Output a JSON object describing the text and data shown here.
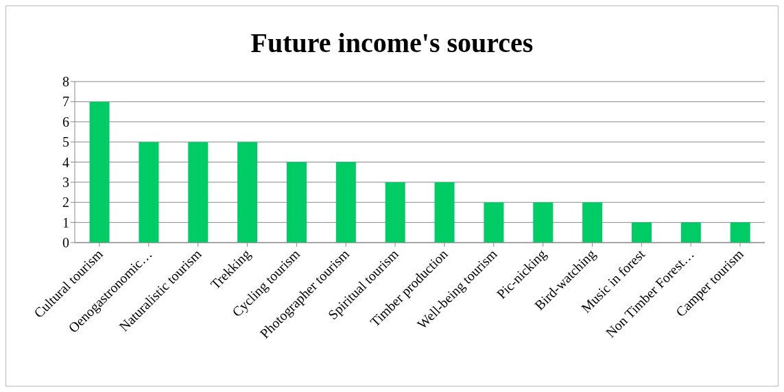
{
  "chart_data": {
    "type": "bar",
    "title": "Future income's sources",
    "categories": [
      "Cultural tourism",
      "Oenogastronomic…",
      "Naturalistic tourism",
      "Trekking",
      "Cycling tourism",
      "Photographer tourism",
      "Spiritual tourism",
      "Timber production",
      "Well-being tourism",
      "Pic-nicking",
      "Bird-watching",
      "Music in forest",
      "Non Timber Forest…",
      "Camper tourism"
    ],
    "values": [
      7,
      5,
      5,
      5,
      4,
      4,
      3,
      3,
      2,
      2,
      2,
      1,
      1,
      1
    ],
    "color": "#00cc66",
    "ylim": [
      0,
      8
    ],
    "yticks": [
      0,
      1,
      2,
      3,
      4,
      5,
      6,
      7,
      8
    ],
    "grid": "y",
    "legend": false
  }
}
